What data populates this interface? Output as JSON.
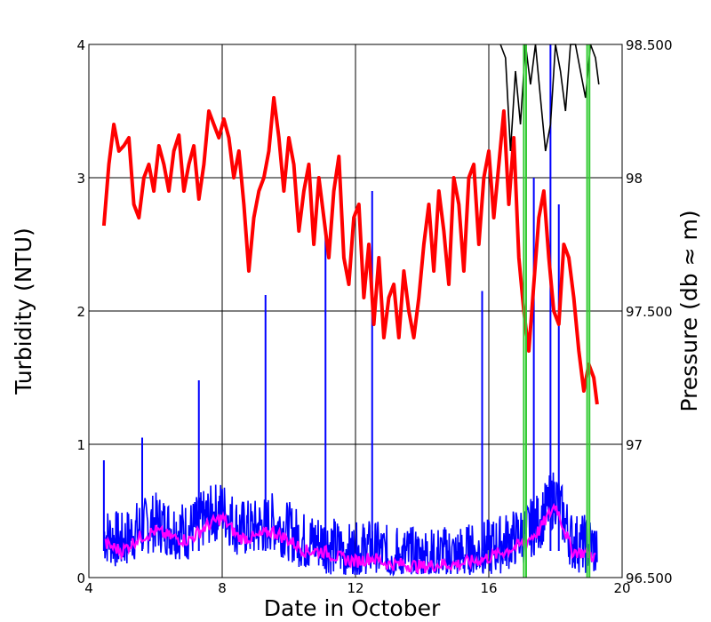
{
  "chart_data": {
    "type": "line",
    "xlabel": "Date in October",
    "ylabel_left": "Turbidity (NTU)",
    "ylabel_right": "Pressure (db ≈ m)",
    "xlim": [
      4,
      20
    ],
    "ylim_left": [
      0,
      4
    ],
    "ylim_right": [
      96.5,
      98.5
    ],
    "x_ticks": [
      4,
      8,
      12,
      16,
      20
    ],
    "x_tick_labels": [
      "4",
      "8",
      "12",
      "16",
      "20"
    ],
    "y_left_ticks": [
      0,
      1,
      2,
      3,
      4
    ],
    "y_left_tick_labels": [
      "0",
      "1",
      "2",
      "3",
      "4"
    ],
    "y_right_ticks": [
      96.5,
      97,
      97.5,
      98,
      98.5
    ],
    "y_right_tick_labels": [
      "96.500",
      "97",
      "97.500",
      "98",
      "98.500"
    ],
    "grid": true,
    "series_colors": {
      "pressure": "#ff0000",
      "turbidity_raw": "#0000ff",
      "turbidity_smoothed": "#ff00ff",
      "pressure_black": "#000000",
      "event_markers": "#33cc33"
    },
    "vertical_markers_x": [
      17.05,
      17.12,
      18.95,
      19.02
    ],
    "series": [
      {
        "key": "pressure",
        "axis": "right",
        "x": [
          4.45,
          4.6,
          4.75,
          4.9,
          5.05,
          5.2,
          5.35,
          5.5,
          5.65,
          5.8,
          5.95,
          6.1,
          6.25,
          6.4,
          6.55,
          6.7,
          6.85,
          7.0,
          7.15,
          7.3,
          7.45,
          7.6,
          7.75,
          7.9,
          8.05,
          8.2,
          8.35,
          8.5,
          8.65,
          8.8,
          8.95,
          9.1,
          9.25,
          9.4,
          9.55,
          9.7,
          9.85,
          10.0,
          10.15,
          10.3,
          10.45,
          10.6,
          10.75,
          10.9,
          11.05,
          11.2,
          11.35,
          11.5,
          11.65,
          11.8,
          11.95,
          12.1,
          12.25,
          12.4,
          12.55,
          12.7,
          12.85,
          13.0,
          13.15,
          13.3,
          13.45,
          13.6,
          13.75,
          13.9,
          14.05,
          14.2,
          14.35,
          14.5,
          14.65,
          14.8,
          14.95,
          15.1,
          15.25,
          15.4,
          15.55,
          15.7,
          15.85,
          16.0,
          16.15,
          16.3,
          16.45,
          16.6,
          16.75,
          16.9,
          17.05,
          17.2,
          17.35,
          17.5,
          17.65,
          17.8,
          17.95,
          18.1,
          18.25,
          18.4,
          18.55,
          18.7,
          18.85,
          19.0,
          19.15,
          19.25
        ],
        "values": [
          97.82,
          98.05,
          98.2,
          98.1,
          98.12,
          98.15,
          97.9,
          97.85,
          98.0,
          98.05,
          97.95,
          98.12,
          98.05,
          97.95,
          98.1,
          98.16,
          97.95,
          98.05,
          98.12,
          97.92,
          98.05,
          98.25,
          98.2,
          98.15,
          98.22,
          98.15,
          98.0,
          98.1,
          97.9,
          97.65,
          97.85,
          97.95,
          98.0,
          98.1,
          98.3,
          98.15,
          97.95,
          98.15,
          98.05,
          97.8,
          97.95,
          98.05,
          97.75,
          98.0,
          97.85,
          97.7,
          97.95,
          98.08,
          97.7,
          97.6,
          97.85,
          97.9,
          97.55,
          97.75,
          97.45,
          97.7,
          97.4,
          97.55,
          97.6,
          97.4,
          97.65,
          97.5,
          97.4,
          97.55,
          97.75,
          97.9,
          97.65,
          97.95,
          97.8,
          97.6,
          98.0,
          97.9,
          97.65,
          98.0,
          98.05,
          97.75,
          98.0,
          98.1,
          97.85,
          98.05,
          98.25,
          97.9,
          98.15,
          97.7,
          97.5,
          97.35,
          97.6,
          97.85,
          97.95,
          97.7,
          97.5,
          97.45,
          97.75,
          97.7,
          97.55,
          97.35,
          97.2,
          97.3,
          97.25,
          97.15
        ],
        "black_x": [
          16.35,
          16.5,
          16.65,
          16.8,
          16.95,
          17.1,
          17.25,
          17.4,
          17.55,
          17.7,
          17.85,
          18.0,
          18.15,
          18.3,
          18.45,
          18.6,
          18.75,
          18.9,
          19.05,
          19.2,
          19.3
        ],
        "black_values": [
          98.5,
          98.45,
          98.1,
          98.4,
          98.2,
          98.5,
          98.35,
          98.55,
          98.3,
          98.1,
          98.2,
          98.5,
          98.4,
          98.25,
          98.5,
          98.6,
          98.4,
          98.3,
          98.5,
          98.45,
          98.35
        ]
      },
      {
        "key": "turbidity_raw",
        "axis": "left",
        "spikes": [
          {
            "x": 4.45,
            "value": 0.88
          },
          {
            "x": 5.6,
            "value": 1.05
          },
          {
            "x": 7.3,
            "value": 1.48
          },
          {
            "x": 9.3,
            "value": 2.12
          },
          {
            "x": 11.1,
            "value": 2.62
          },
          {
            "x": 12.5,
            "value": 2.9
          },
          {
            "x": 15.8,
            "value": 2.15
          },
          {
            "x": 17.35,
            "value": 3.0
          },
          {
            "x": 17.85,
            "value": 4.0
          },
          {
            "x": 18.1,
            "value": 2.8
          }
        ],
        "baseline_mean": 0.3
      },
      {
        "key": "turbidity_smoothed",
        "axis": "left",
        "x": [
          4.5,
          5.0,
          5.5,
          6.0,
          6.5,
          7.0,
          7.5,
          8.0,
          8.5,
          9.0,
          9.5,
          10.0,
          10.5,
          11.0,
          11.5,
          12.0,
          12.5,
          13.0,
          13.5,
          14.0,
          14.5,
          15.0,
          15.5,
          16.0,
          16.5,
          17.0,
          17.5,
          18.0,
          18.5,
          19.0,
          19.2
        ],
        "values": [
          0.25,
          0.2,
          0.3,
          0.35,
          0.3,
          0.28,
          0.38,
          0.45,
          0.3,
          0.3,
          0.35,
          0.28,
          0.2,
          0.2,
          0.15,
          0.12,
          0.15,
          0.1,
          0.1,
          0.08,
          0.1,
          0.1,
          0.12,
          0.15,
          0.2,
          0.25,
          0.35,
          0.55,
          0.2,
          0.18,
          0.15
        ]
      }
    ]
  }
}
